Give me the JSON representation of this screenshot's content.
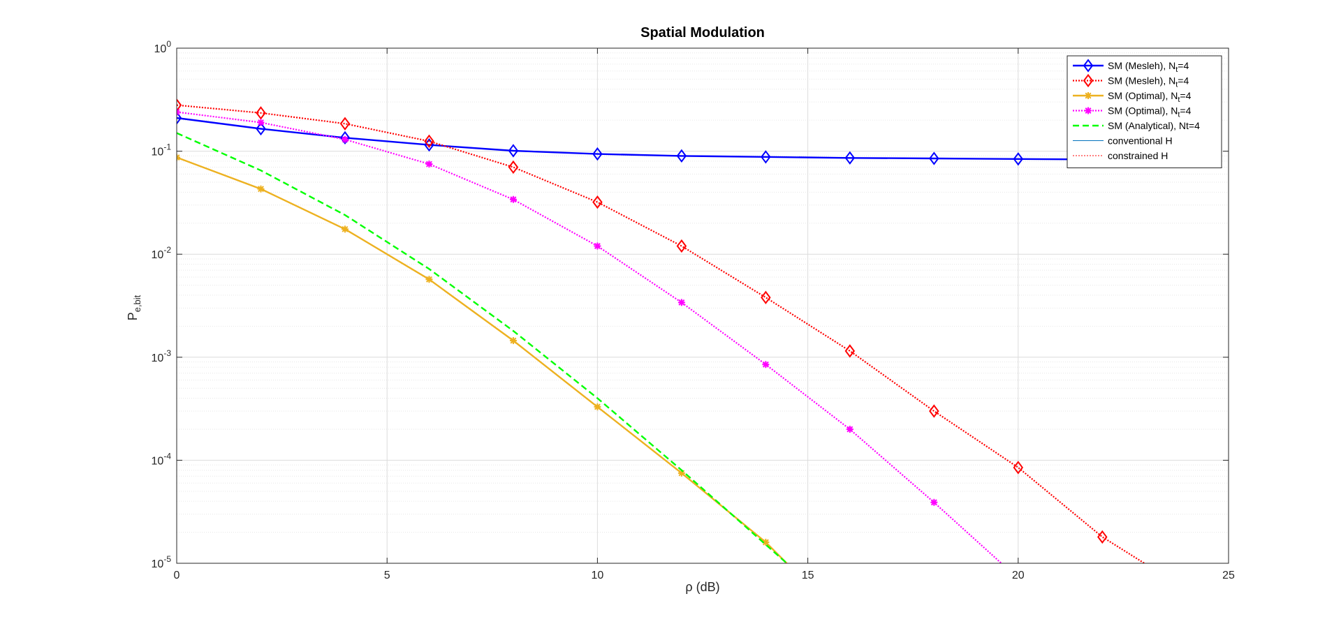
{
  "chart_data": {
    "type": "line",
    "title": "Spatial Modulation",
    "xlabel": "ρ (dB)",
    "ylabel": "P",
    "ylabel_sub": "e,bit",
    "xlim": [
      0,
      25
    ],
    "ylim": [
      1e-05,
      1
    ],
    "yscale": "log",
    "grid": true,
    "legend_position": "top-right",
    "x_ticks": [
      "0",
      "5",
      "10",
      "15",
      "20",
      "25"
    ],
    "y_ticks": [
      {
        "base": "10",
        "exp": "0"
      },
      {
        "base": "10",
        "exp": "-1"
      },
      {
        "base": "10",
        "exp": "-2"
      },
      {
        "base": "10",
        "exp": "-3"
      },
      {
        "base": "10",
        "exp": "-4"
      },
      {
        "base": "10",
        "exp": "-5"
      }
    ],
    "series": [
      {
        "name": "SM (Mesleh), N_t=4",
        "color": "#0000ff",
        "style": "solid",
        "marker": "diamond",
        "x": [
          0,
          2,
          4,
          6,
          8,
          10,
          12,
          14,
          16,
          18,
          20,
          22,
          24
        ],
        "y": [
          0.21,
          0.165,
          0.135,
          0.115,
          0.101,
          0.094,
          0.09,
          0.088,
          0.086,
          0.085,
          0.084,
          0.083,
          0.083
        ]
      },
      {
        "name": "SM (Mesleh), N_t=4",
        "color": "#ff0000",
        "style": "dotted",
        "marker": "diamond",
        "x": [
          0,
          2,
          4,
          6,
          8,
          10,
          12,
          14,
          16,
          18,
          20,
          22,
          23
        ],
        "y": [
          0.28,
          0.235,
          0.185,
          0.125,
          0.07,
          0.032,
          0.012,
          0.0038,
          0.00115,
          0.0003,
          8.5e-05,
          1.8e-05,
          1e-05
        ]
      },
      {
        "name": "SM (Optimal), N_t=4",
        "color": "#edb120",
        "style": "solid",
        "marker": "asterisk",
        "x": [
          0,
          2,
          4,
          6,
          8,
          10,
          12,
          14,
          14.5
        ],
        "y": [
          0.087,
          0.043,
          0.0175,
          0.0057,
          0.00145,
          0.00033,
          7.5e-05,
          1.6e-05,
          1e-05
        ]
      },
      {
        "name": "SM (Optimal), N_t=4",
        "color": "#ff00ff",
        "style": "dotted",
        "marker": "asterisk",
        "x": [
          0,
          2,
          4,
          6,
          8,
          10,
          12,
          14,
          16,
          18,
          19.6
        ],
        "y": [
          0.24,
          0.19,
          0.13,
          0.075,
          0.034,
          0.012,
          0.0034,
          0.00085,
          0.0002,
          3.9e-05,
          1e-05
        ]
      },
      {
        "name": "SM (Analytical), Nt=4",
        "color": "#00ff00",
        "style": "dashed",
        "marker": "none",
        "x": [
          0,
          2,
          4,
          6,
          8,
          10,
          12,
          13,
          14.5
        ],
        "y": [
          0.15,
          0.065,
          0.024,
          0.0072,
          0.0018,
          0.0004,
          8e-05,
          3.5e-05,
          1e-05
        ]
      },
      {
        "name": "conventional H",
        "color": "#0072bd",
        "style": "thin-solid",
        "marker": "none",
        "x": [],
        "y": []
      },
      {
        "name": "constrained H",
        "color": "#ff0000",
        "style": "thin-dotted",
        "marker": "none",
        "x": [],
        "y": []
      }
    ]
  }
}
